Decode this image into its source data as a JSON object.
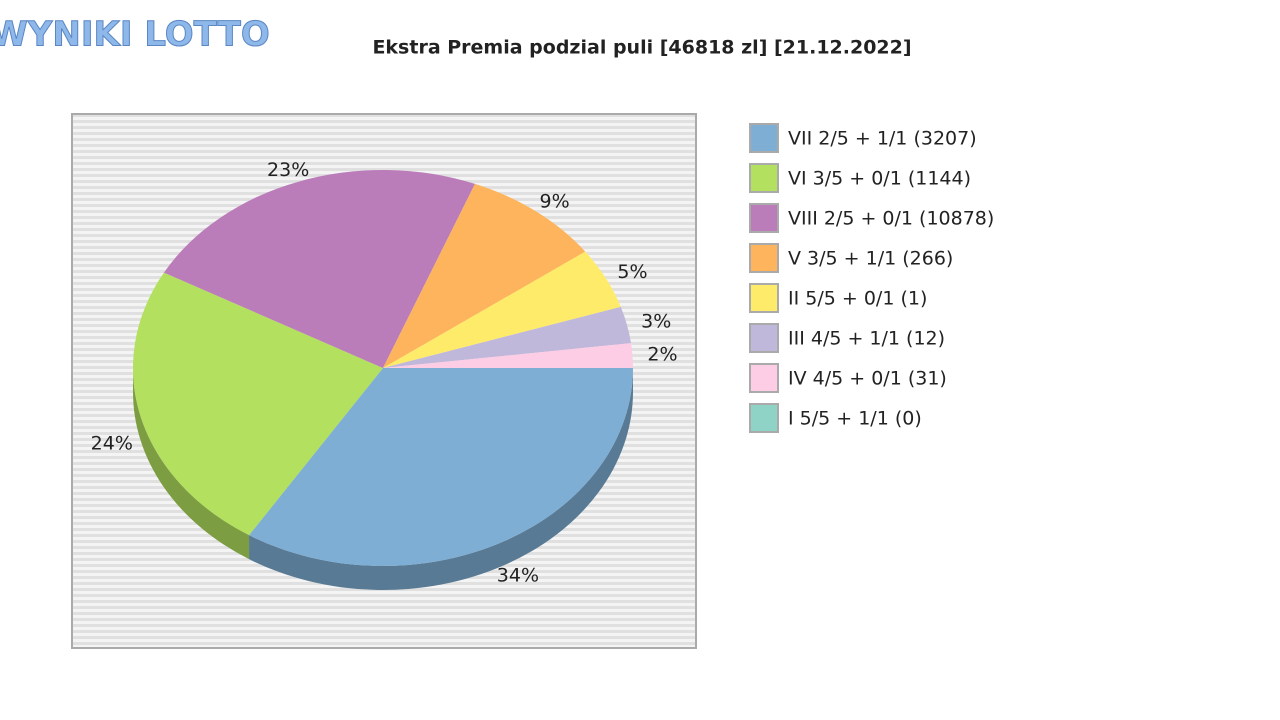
{
  "logo": "WYNIKI LOTTO",
  "chart_data": {
    "type": "pie",
    "title": "Ekstra Premia podzial puli [46818 zl] [21.12.2022]",
    "categories": [
      "VII 2/5 + 1/1 (3207)",
      "VI 3/5 + 0/1 (1144)",
      "VIII 2/5 + 0/1 (10878)",
      "V 3/5 + 1/1 (266)",
      "II 5/5 + 0/1 (1)",
      "III 4/5 + 1/1 (12)",
      "IV 4/5 + 0/1 (31)",
      "I 5/5 + 1/1 (0)"
    ],
    "values": [
      34,
      24,
      23,
      9,
      5,
      3,
      2,
      0
    ],
    "value_labels": [
      "34%",
      "24%",
      "23%",
      "9%",
      "5%",
      "3%",
      "2%",
      null
    ],
    "colors": [
      "#7eaed4",
      "#b3e05e",
      "#bb7dba",
      "#fdb45c",
      "#ffeb6a",
      "#c0b8da",
      "#fccde5",
      "#8fd3c7"
    ],
    "legend": "right"
  }
}
